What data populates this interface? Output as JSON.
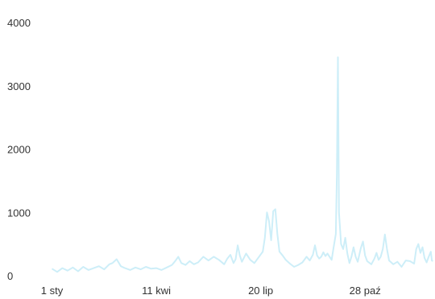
{
  "chart_data": {
    "type": "line",
    "title": "",
    "xlabel": "",
    "ylabel": "",
    "ylim": [
      0,
      4000
    ],
    "yticks": [
      0,
      1000,
      2000,
      3000,
      4000
    ],
    "ytick_labels": [
      "0",
      "1000",
      "2000",
      "3000",
      "4000"
    ],
    "xticks": [
      0,
      100,
      200,
      300
    ],
    "xtick_labels": [
      "1 sty",
      "11 kwi",
      "20 lip",
      "28 paź"
    ],
    "xlim": [
      -5,
      367
    ],
    "grid": false,
    "legend": "none",
    "line_color": "#cdeef8",
    "series": [
      {
        "name": "",
        "points": [
          [
            0,
            110
          ],
          [
            5,
            60
          ],
          [
            10,
            120
          ],
          [
            15,
            80
          ],
          [
            20,
            130
          ],
          [
            25,
            70
          ],
          [
            30,
            140
          ],
          [
            35,
            90
          ],
          [
            40,
            120
          ],
          [
            45,
            150
          ],
          [
            50,
            100
          ],
          [
            55,
            180
          ],
          [
            58,
            200
          ],
          [
            62,
            260
          ],
          [
            66,
            150
          ],
          [
            70,
            120
          ],
          [
            75,
            90
          ],
          [
            80,
            130
          ],
          [
            85,
            100
          ],
          [
            90,
            140
          ],
          [
            95,
            110
          ],
          [
            100,
            120
          ],
          [
            105,
            90
          ],
          [
            110,
            130
          ],
          [
            115,
            170
          ],
          [
            118,
            230
          ],
          [
            121,
            300
          ],
          [
            124,
            200
          ],
          [
            128,
            170
          ],
          [
            132,
            230
          ],
          [
            136,
            180
          ],
          [
            140,
            210
          ],
          [
            145,
            300
          ],
          [
            150,
            240
          ],
          [
            155,
            300
          ],
          [
            160,
            250
          ],
          [
            165,
            180
          ],
          [
            168,
            270
          ],
          [
            171,
            330
          ],
          [
            174,
            200
          ],
          [
            176,
            260
          ],
          [
            178,
            480
          ],
          [
            180,
            320
          ],
          [
            182,
            220
          ],
          [
            186,
            350
          ],
          [
            190,
            250
          ],
          [
            194,
            200
          ],
          [
            198,
            290
          ],
          [
            202,
            380
          ],
          [
            204,
            600
          ],
          [
            206,
            1000
          ],
          [
            208,
            860
          ],
          [
            210,
            560
          ],
          [
            212,
            1020
          ],
          [
            214,
            1050
          ],
          [
            216,
            660
          ],
          [
            218,
            380
          ],
          [
            221,
            320
          ],
          [
            224,
            250
          ],
          [
            228,
            190
          ],
          [
            232,
            140
          ],
          [
            236,
            170
          ],
          [
            240,
            210
          ],
          [
            244,
            300
          ],
          [
            247,
            240
          ],
          [
            250,
            330
          ],
          [
            252,
            480
          ],
          [
            254,
            320
          ],
          [
            256,
            270
          ],
          [
            258,
            300
          ],
          [
            260,
            370
          ],
          [
            262,
            310
          ],
          [
            264,
            350
          ],
          [
            266,
            300
          ],
          [
            268,
            250
          ],
          [
            270,
            460
          ],
          [
            272,
            660
          ],
          [
            273,
            1600
          ],
          [
            274,
            3450
          ],
          [
            275,
            1000
          ],
          [
            277,
            500
          ],
          [
            279,
            420
          ],
          [
            281,
            600
          ],
          [
            283,
            350
          ],
          [
            285,
            200
          ],
          [
            287,
            300
          ],
          [
            289,
            450
          ],
          [
            291,
            300
          ],
          [
            293,
            220
          ],
          [
            296,
            440
          ],
          [
            298,
            540
          ],
          [
            300,
            320
          ],
          [
            302,
            230
          ],
          [
            306,
            180
          ],
          [
            309,
            270
          ],
          [
            311,
            360
          ],
          [
            313,
            250
          ],
          [
            315,
            300
          ],
          [
            317,
            420
          ],
          [
            319,
            650
          ],
          [
            321,
            420
          ],
          [
            323,
            240
          ],
          [
            327,
            180
          ],
          [
            331,
            220
          ],
          [
            335,
            140
          ],
          [
            339,
            240
          ],
          [
            343,
            230
          ],
          [
            347,
            190
          ],
          [
            349,
            420
          ],
          [
            351,
            500
          ],
          [
            353,
            360
          ],
          [
            355,
            450
          ],
          [
            357,
            280
          ],
          [
            359,
            210
          ],
          [
            361,
            300
          ],
          [
            363,
            380
          ],
          [
            364,
            240
          ],
          [
            365,
            230
          ]
        ]
      }
    ]
  }
}
